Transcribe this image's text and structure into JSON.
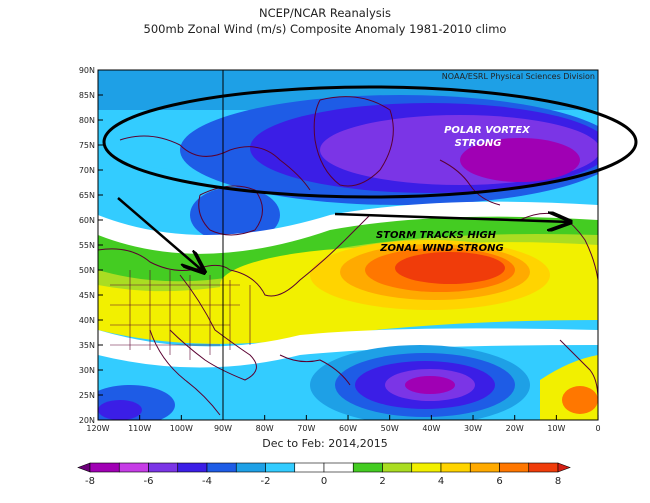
{
  "title_line1": "NCEP/NCAR Reanalysis",
  "title_line2": "500mb Zonal Wind (m/s) Composite Anomaly 1981-2010 climo",
  "credit": "NOAA/ESRL Physical Sciences Division",
  "subtitle": "Dec to Feb: 2014,2015",
  "annotations": {
    "polar_vortex_line1": "POLAR VORTEX",
    "polar_vortex_line2": "STRONG",
    "storm_tracks_line1": "STORM TRACKS HIGH",
    "storm_tracks_line2": "ZONAL WIND STRONG"
  },
  "lat_labels": [
    "90N",
    "85N",
    "80N",
    "75N",
    "70N",
    "65N",
    "60N",
    "55N",
    "50N",
    "45N",
    "40N",
    "35N",
    "30N",
    "25N",
    "20N"
  ],
  "lon_labels": [
    "120W",
    "110W",
    "100W",
    "90W",
    "80W",
    "70W",
    "60W",
    "50W",
    "40W",
    "30W",
    "20W",
    "10W",
    "0"
  ],
  "colorbar": {
    "tick_labels": [
      "-8",
      "-6",
      "-4",
      "-2",
      "0",
      "2",
      "4",
      "6",
      "8"
    ],
    "colors": [
      "#6b0079",
      "#a000b4",
      "#c63ce6",
      "#7b35e6",
      "#3b1ee6",
      "#1e5ce6",
      "#1ea0e6",
      "#33ccff",
      "#ffffff",
      "#ffffff",
      "#44cc22",
      "#aadd22",
      "#f2f000",
      "#ffd400",
      "#ffaa00",
      "#ff7700",
      "#f03c0a",
      "#d21e14"
    ]
  }
}
